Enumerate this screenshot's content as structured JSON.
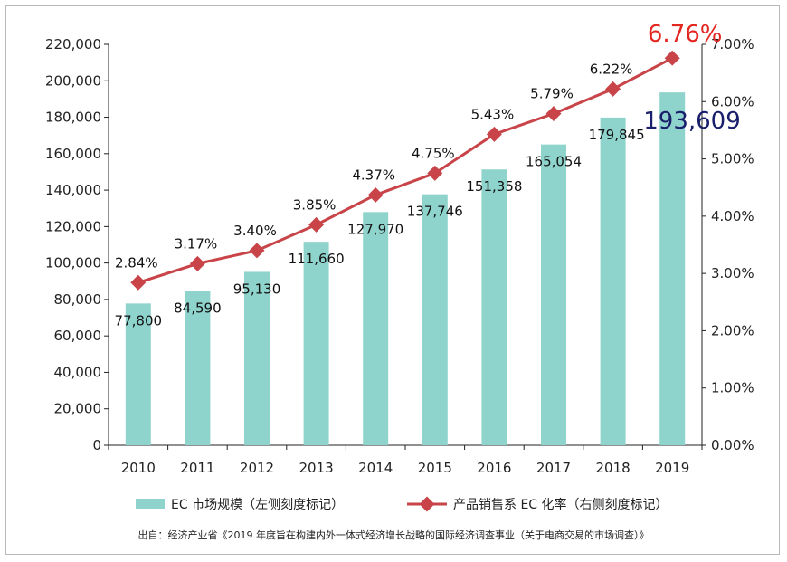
{
  "chart_data": {
    "type": "bar",
    "categories": [
      "2010",
      "2011",
      "2012",
      "2013",
      "2014",
      "2015",
      "2016",
      "2017",
      "2018",
      "2019"
    ],
    "series": [
      {
        "name": "EC 市场规模（左侧刻度标记）",
        "type": "bar",
        "axis": "left",
        "values": [
          77800,
          84590,
          95130,
          111660,
          127970,
          137746,
          151358,
          165054,
          179845,
          193609
        ],
        "labels": [
          "77,800",
          "84,590",
          "95,130",
          "111,660",
          "127,970",
          "137,746",
          "151,358",
          "165,054",
          "179,845",
          "193,609"
        ],
        "color": "#8fd4cc"
      },
      {
        "name": "产品销售系 EC 化率（右侧刻度标记）",
        "type": "line",
        "axis": "right",
        "values": [
          2.84,
          3.17,
          3.4,
          3.85,
          4.37,
          4.75,
          5.43,
          5.79,
          6.22,
          6.76
        ],
        "labels": [
          "2.84%",
          "3.17%",
          "3.40%",
          "3.85%",
          "4.37%",
          "4.75%",
          "5.43%",
          "5.79%",
          "6.22%",
          "6.76%"
        ],
        "color": "#c84448"
      }
    ],
    "left_axis": {
      "ylim": [
        0,
        220000
      ],
      "ticks": [
        "0",
        "20,000",
        "40,000",
        "60,000",
        "80,000",
        "100,000",
        "120,000",
        "140,000",
        "160,000",
        "180,000",
        "200,000",
        "220,000"
      ]
    },
    "right_axis": {
      "ylim": [
        0,
        7
      ],
      "ticks": [
        "0.00%",
        "1.00%",
        "2.00%",
        "3.00%",
        "4.00%",
        "5.00%",
        "6.00%",
        "7.00%"
      ]
    },
    "highlight": {
      "last_bar_color": "#1a1f6b",
      "last_line_color": "#e3261f"
    },
    "legend_position": "bottom",
    "grid": false
  },
  "source_note": "出自：经济产业省《2019 年度旨在构建内外一体式经济增长战略的国际经济调查事业（关于电商交易的市场调查）》"
}
